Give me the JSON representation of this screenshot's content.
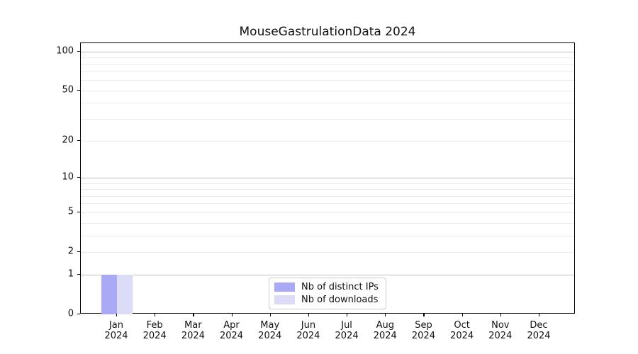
{
  "chart_data": {
    "type": "bar",
    "title": "MouseGastrulationData 2024",
    "categories": [
      "Jan",
      "Feb",
      "Mar",
      "Apr",
      "May",
      "Jun",
      "Jul",
      "Aug",
      "Sep",
      "Oct",
      "Nov",
      "Dec"
    ],
    "category_year": "2024",
    "series": [
      {
        "name": "Nb of distinct IPs",
        "color": "#a9a9f5",
        "values": [
          1,
          0,
          0,
          0,
          0,
          0,
          0,
          0,
          0,
          0,
          0,
          0
        ]
      },
      {
        "name": "Nb of downloads",
        "color": "#dcdcf8",
        "values": [
          1,
          0,
          0,
          0,
          0,
          0,
          0,
          0,
          0,
          0,
          0,
          0
        ]
      }
    ],
    "yscale": "log1p",
    "ylim": [
      0,
      116
    ],
    "yticks": [
      0,
      1,
      2,
      5,
      10,
      20,
      50,
      100
    ],
    "grid": {
      "major_values": [
        1,
        10,
        100
      ],
      "minor_values": [
        2,
        3,
        4,
        5,
        6,
        7,
        8,
        9,
        20,
        30,
        40,
        50,
        60,
        70,
        80,
        90
      ]
    },
    "legend_position": "lower center",
    "colors": {
      "axis": "#000000",
      "major_grid": "#c0c0c0",
      "minor_grid": "#ebebeb",
      "legend_border": "#cccccc"
    }
  }
}
